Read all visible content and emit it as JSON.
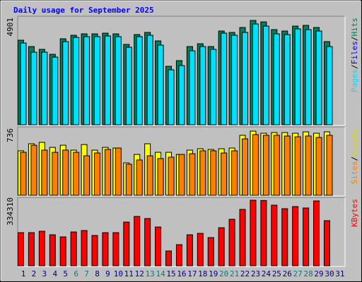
{
  "chart_data": [
    {
      "type": "bar",
      "title": "Daily usage for September 2025",
      "ylim": [
        0,
        4901
      ],
      "yticks": [
        4901
      ],
      "separator": "/",
      "series": [
        {
          "name": "Hits",
          "color": "#00805c",
          "values": [
            3973,
            3675,
            3543,
            3311,
            4040,
            4205,
            4271,
            4271,
            4304,
            4271,
            3775,
            4238,
            4338,
            3940,
            2748,
            3013,
            3675,
            3808,
            3675,
            4404,
            4338,
            4569,
            4901,
            4834,
            4470,
            4404,
            4635,
            4669,
            4569,
            3907,
            null
          ]
        },
        {
          "name": "Files",
          "color": "#0000ff",
          "values": [
            null,
            null,
            null,
            null,
            null,
            null,
            null,
            null,
            null,
            null,
            null,
            null,
            null,
            null,
            null,
            null,
            null,
            null,
            null,
            null,
            null,
            null,
            null,
            null,
            null,
            null,
            null,
            null,
            null,
            null,
            null
          ]
        },
        {
          "name": "Pages",
          "color": "#00e0ff",
          "values": [
            3841,
            3410,
            3410,
            3179,
            3907,
            4106,
            4139,
            4139,
            4172,
            4139,
            3642,
            4139,
            4205,
            3742,
            2583,
            2781,
            3477,
            3675,
            3543,
            4304,
            4205,
            4338,
            4735,
            4635,
            4271,
            4238,
            4503,
            4470,
            4404,
            3675,
            null
          ]
        }
      ]
    },
    {
      "type": "bar",
      "ylim": [
        0,
        736
      ],
      "yticks": [
        736
      ],
      "separator": "/",
      "series": [
        {
          "name": "Visits",
          "color": "#ffff00",
          "label_color": "#d8d800",
          "values": [
            510,
            591,
            607,
            550,
            574,
            518,
            582,
            518,
            550,
            542,
            372,
            469,
            591,
            493,
            493,
            469,
            518,
            534,
            526,
            534,
            542,
            688,
            736,
            712,
            720,
            720,
            712,
            728,
            712,
            728,
            null
          ]
        },
        {
          "name": "Sites",
          "color": "#ff8000",
          "values": [
            493,
            574,
            518,
            493,
            518,
            493,
            453,
            485,
            526,
            542,
            356,
            405,
            453,
            421,
            437,
            469,
            477,
            510,
            510,
            485,
            510,
            647,
            696,
            688,
            688,
            680,
            671,
            680,
            663,
            688,
            null
          ]
        }
      ]
    },
    {
      "type": "bar",
      "ylim": [
        0,
        334310
      ],
      "yticks": [
        334310
      ],
      "categories": [
        "1",
        "2",
        "3",
        "4",
        "5",
        "6",
        "7",
        "8",
        "9",
        "10",
        "11",
        "12",
        "13",
        "14",
        "15",
        "16",
        "17",
        "18",
        "19",
        "20",
        "21",
        "22",
        "23",
        "24",
        "25",
        "26",
        "27",
        "28",
        "29",
        "30",
        "31"
      ],
      "category_colors": [
        "#000080",
        "#000080",
        "#000080",
        "#000080",
        "#000080",
        "#008080",
        "#008080",
        "#000080",
        "#000080",
        "#000080",
        "#000080",
        "#000080",
        "#008080",
        "#008080",
        "#000080",
        "#000080",
        "#000080",
        "#000080",
        "#000080",
        "#008080",
        "#008080",
        "#000080",
        "#000080",
        "#000080",
        "#000080",
        "#000080",
        "#008080",
        "#008080",
        "#000080",
        "#000080",
        "#000080"
      ],
      "series": [
        {
          "name": "KBytes",
          "color": "#ff0000",
          "values": [
            168965,
            168965,
            176155,
            158180,
            147395,
            172560,
            179750,
            154585,
            168965,
            168965,
            222890,
            251650,
            240865,
            197725,
            75495,
            107850,
            158180,
            165370,
            143800,
            194130,
            237270,
            287600,
            334310,
            333000,
            309170,
            291195,
            301980,
            294790,
            330740,
            230080,
            null
          ]
        }
      ]
    }
  ]
}
